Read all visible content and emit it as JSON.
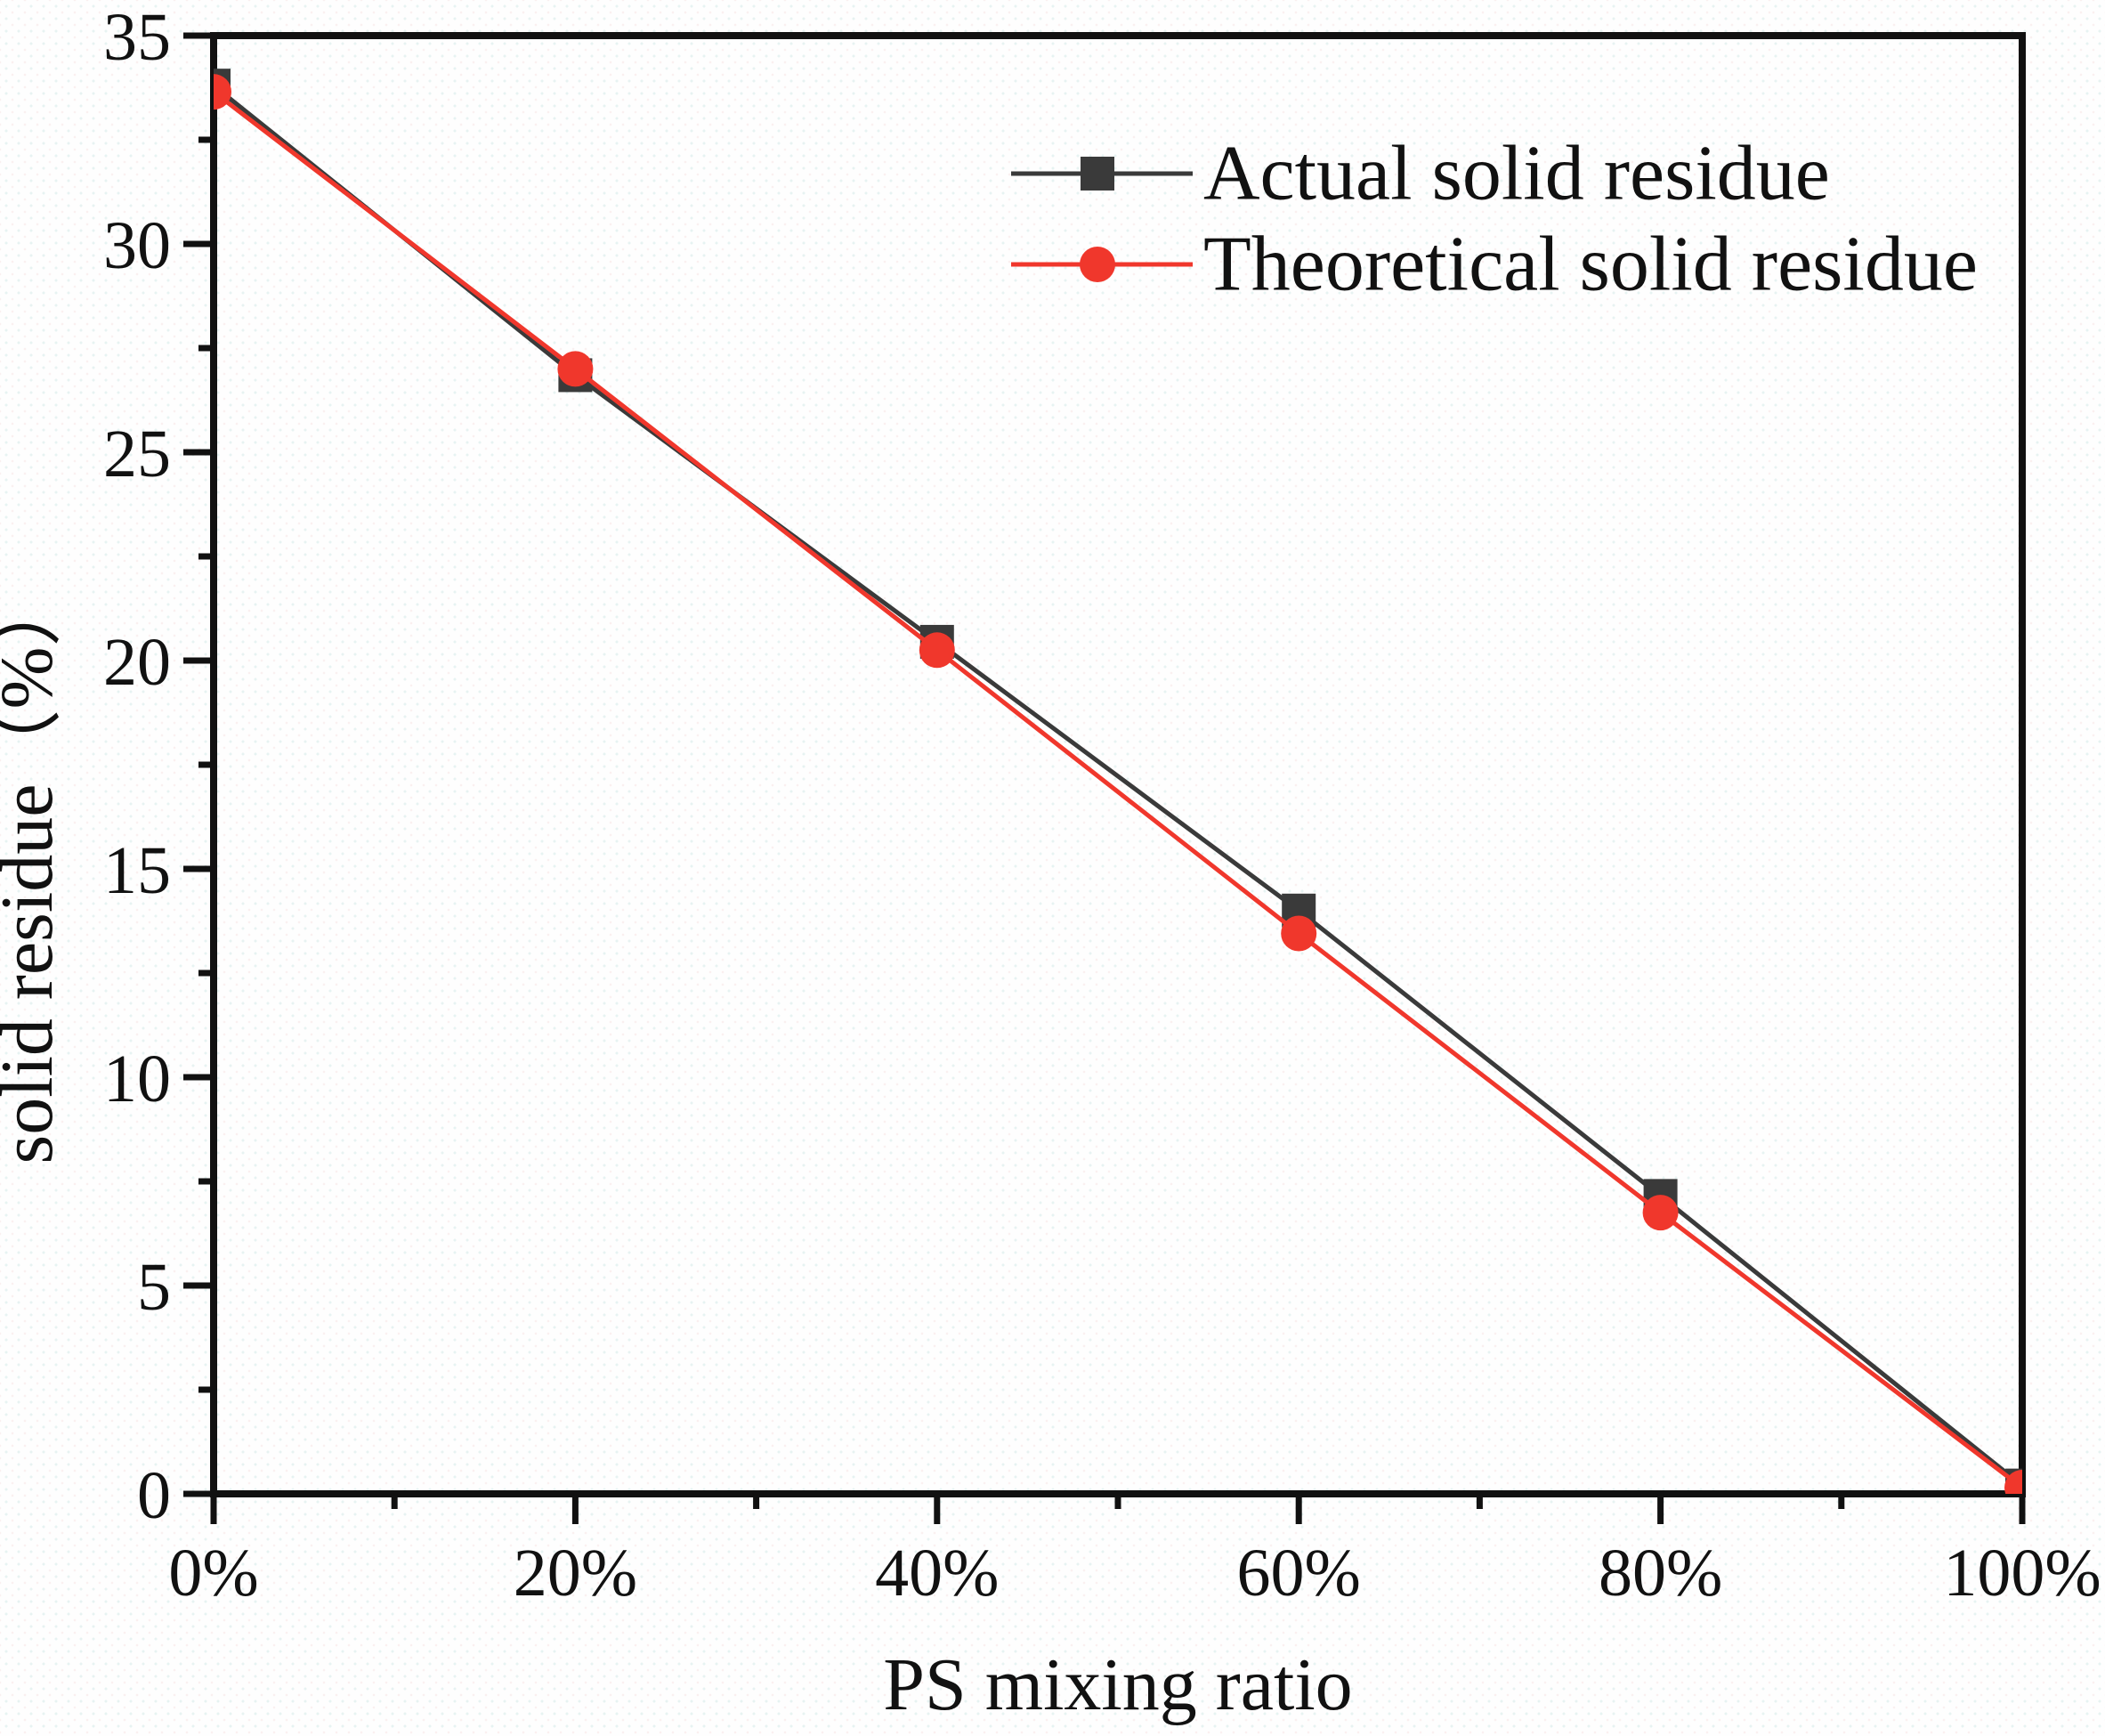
{
  "figure": {
    "kind": "scientific-line-plot",
    "frame_color": "#111111",
    "background_color": "#fefefe"
  },
  "chart_data": {
    "type": "line",
    "title": "",
    "xlabel": "PS mixing ratio",
    "ylabel": "solid residue（%）",
    "xlim": [
      0,
      100
    ],
    "ylim": [
      0,
      35
    ],
    "grid": false,
    "legend_position": "top-right-inside",
    "x_percent": [
      0,
      20,
      40,
      60,
      80,
      100
    ],
    "x_tick_labels": [
      "0%",
      "20%",
      "40%",
      "60%",
      "80%",
      "100%"
    ],
    "x_minor_ticks": [
      10,
      30,
      50,
      70,
      90
    ],
    "y_major_ticks": [
      0,
      5,
      10,
      15,
      20,
      25,
      30,
      35
    ],
    "y_minor_step": 2.5,
    "series": [
      {
        "name": "Actual solid residue",
        "color": "#3a3a3a",
        "marker": "square",
        "values": [
          33.8,
          26.85,
          20.45,
          14.0,
          7.15,
          0.2
        ]
      },
      {
        "name": "Theoretical solid residue",
        "color": "#f0372c",
        "marker": "circle",
        "values": [
          33.65,
          27.0,
          20.25,
          13.45,
          6.75,
          0.15
        ]
      }
    ]
  }
}
